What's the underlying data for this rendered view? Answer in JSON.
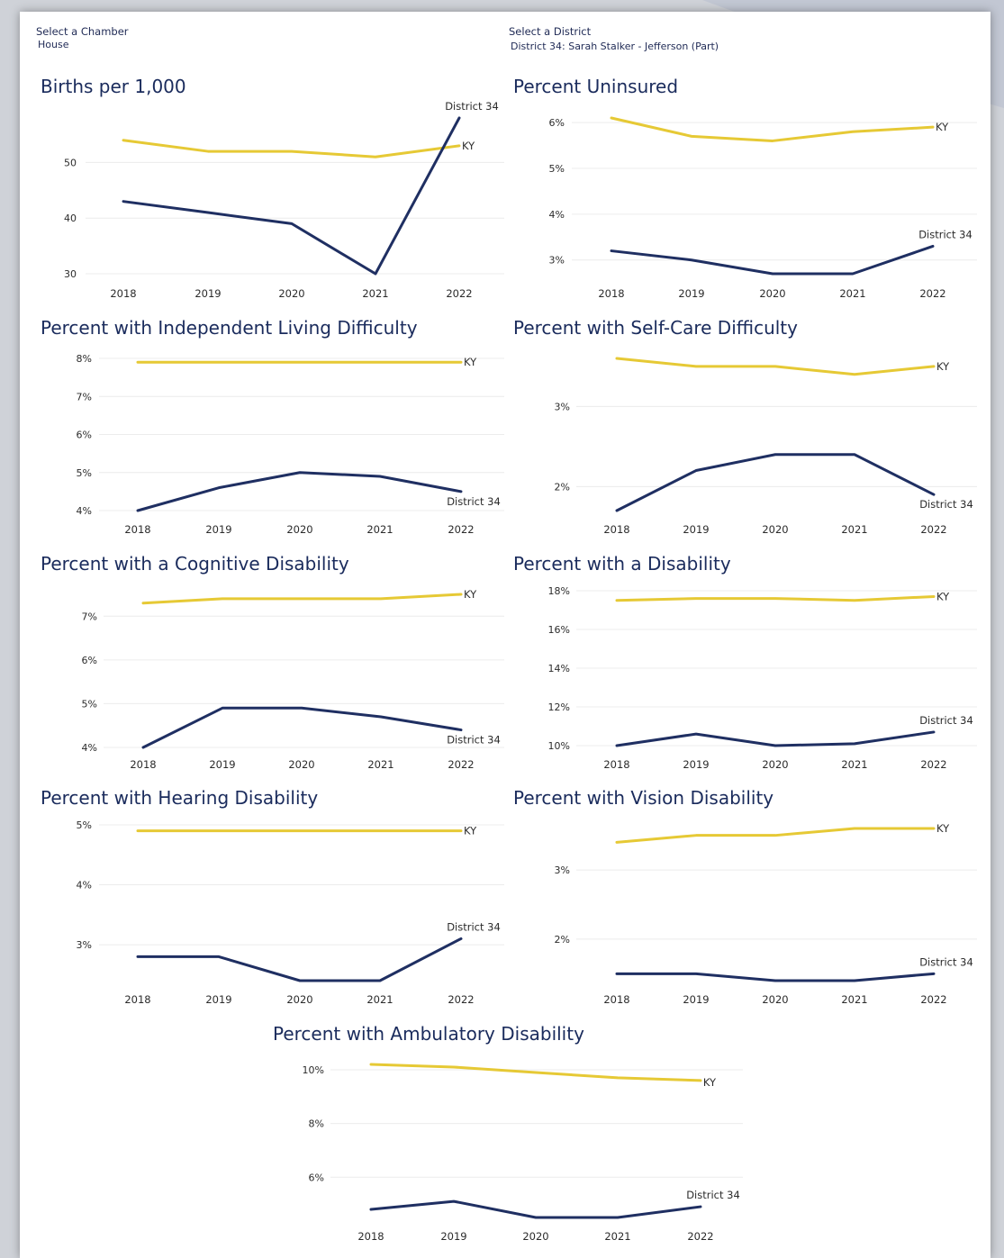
{
  "filters": {
    "chamber": {
      "label": "Select a Chamber",
      "value": "House"
    },
    "district": {
      "label": "Select a District",
      "value": "District 34: Sarah Stalker - Jefferson (Part)"
    }
  },
  "colors": {
    "ky": "#e6c935",
    "district": "#1f2f62",
    "grid": "#ececec",
    "title": "#1a2b5c"
  },
  "chart_data": [
    {
      "type": "line",
      "title": "Births per 1,000",
      "x": [
        "2018",
        "2019",
        "2020",
        "2021",
        "2022"
      ],
      "series": [
        {
          "name": "KY",
          "values": [
            54,
            52,
            52,
            51,
            53
          ]
        },
        {
          "name": "District 34",
          "values": [
            43,
            41,
            39,
            30,
            58
          ]
        }
      ],
      "yticks": [
        30,
        40,
        50
      ],
      "ytick_labels": [
        "30",
        "40",
        "50"
      ],
      "ylim": [
        30,
        58
      ],
      "grid": true
    },
    {
      "type": "line",
      "title": "Percent Uninsured",
      "x": [
        "2018",
        "2019",
        "2020",
        "2021",
        "2022"
      ],
      "series": [
        {
          "name": "KY",
          "values": [
            6.1,
            5.7,
            5.6,
            5.8,
            5.9
          ]
        },
        {
          "name": "District 34",
          "values": [
            3.2,
            3.0,
            2.7,
            2.7,
            3.3
          ]
        }
      ],
      "yticks": [
        3,
        4,
        5,
        6
      ],
      "ytick_labels": [
        "3%",
        "4%",
        "5%",
        "6%"
      ],
      "ylim": [
        2.7,
        6.1
      ],
      "grid": true
    },
    {
      "type": "line",
      "title": "Percent with Independent Living Difficulty",
      "x": [
        "2018",
        "2019",
        "2020",
        "2021",
        "2022"
      ],
      "series": [
        {
          "name": "KY",
          "values": [
            7.9,
            7.9,
            7.9,
            7.9,
            7.9
          ]
        },
        {
          "name": "District 34",
          "values": [
            4.0,
            4.6,
            5.0,
            4.9,
            4.5
          ]
        }
      ],
      "yticks": [
        4,
        5,
        6,
        7,
        8
      ],
      "ytick_labels": [
        "4%",
        "5%",
        "6%",
        "7%",
        "8%"
      ],
      "ylim": [
        4,
        8
      ],
      "grid": true
    },
    {
      "type": "line",
      "title": "Percent with Self-Care Difficulty",
      "x": [
        "2018",
        "2019",
        "2020",
        "2021",
        "2022"
      ],
      "series": [
        {
          "name": "KY",
          "values": [
            3.6,
            3.5,
            3.5,
            3.4,
            3.5
          ]
        },
        {
          "name": "District 34",
          "values": [
            1.7,
            2.2,
            2.4,
            2.4,
            1.9
          ]
        }
      ],
      "yticks": [
        2,
        3
      ],
      "ytick_labels": [
        "2%",
        "3%"
      ],
      "ylim": [
        1.7,
        3.6
      ],
      "grid": true
    },
    {
      "type": "line",
      "title": "Percent with a Cognitive Disability",
      "x": [
        "2018",
        "2019",
        "2020",
        "2021",
        "2022"
      ],
      "series": [
        {
          "name": "KY",
          "values": [
            7.3,
            7.4,
            7.4,
            7.4,
            7.5
          ]
        },
        {
          "name": "District 34",
          "values": [
            4.0,
            4.9,
            4.9,
            4.7,
            4.4
          ]
        }
      ],
      "yticks": [
        4,
        5,
        6,
        7
      ],
      "ytick_labels": [
        "4%",
        "5%",
        "6%",
        "7%"
      ],
      "ylim": [
        4,
        7.5
      ],
      "grid": true
    },
    {
      "type": "line",
      "title": "Percent with a Disability",
      "x": [
        "2018",
        "2019",
        "2020",
        "2021",
        "2022"
      ],
      "series": [
        {
          "name": "KY",
          "values": [
            17.5,
            17.6,
            17.6,
            17.5,
            17.7
          ]
        },
        {
          "name": "District 34",
          "values": [
            10.0,
            10.6,
            10.0,
            10.1,
            10.7
          ]
        }
      ],
      "yticks": [
        10,
        12,
        14,
        16,
        18
      ],
      "ytick_labels": [
        "10%",
        "12%",
        "14%",
        "16%",
        "18%"
      ],
      "ylim": [
        10,
        18
      ],
      "grid": true
    },
    {
      "type": "line",
      "title": "Percent with Hearing Disability",
      "x": [
        "2018",
        "2019",
        "2020",
        "2021",
        "2022"
      ],
      "series": [
        {
          "name": "KY",
          "values": [
            4.9,
            4.9,
            4.9,
            4.9,
            4.9
          ]
        },
        {
          "name": "District 34",
          "values": [
            2.8,
            2.8,
            2.4,
            2.4,
            3.1
          ]
        }
      ],
      "yticks": [
        3,
        4,
        5
      ],
      "ytick_labels": [
        "3%",
        "4%",
        "5%"
      ],
      "ylim": [
        2.4,
        5
      ],
      "grid": true
    },
    {
      "type": "line",
      "title": "Percent with Vision Disability",
      "x": [
        "2018",
        "2019",
        "2020",
        "2021",
        "2022"
      ],
      "series": [
        {
          "name": "KY",
          "values": [
            3.4,
            3.5,
            3.5,
            3.6,
            3.6
          ]
        },
        {
          "name": "District 34",
          "values": [
            1.5,
            1.5,
            1.4,
            1.4,
            1.5
          ]
        }
      ],
      "yticks": [
        2,
        3
      ],
      "ytick_labels": [
        "2%",
        "3%"
      ],
      "ylim": [
        1.4,
        3.6
      ],
      "grid": true
    },
    {
      "type": "line",
      "title": "Percent with Ambulatory Disability",
      "x": [
        "2018",
        "2019",
        "2020",
        "2021",
        "2022"
      ],
      "series": [
        {
          "name": "KY",
          "values": [
            10.2,
            10.1,
            9.9,
            9.7,
            9.6
          ]
        },
        {
          "name": "District 34",
          "values": [
            4.8,
            5.1,
            4.5,
            4.5,
            4.9
          ]
        }
      ],
      "yticks": [
        6,
        8,
        10
      ],
      "ytick_labels": [
        "6%",
        "8%",
        "10%"
      ],
      "ylim": [
        4.5,
        10.2
      ],
      "grid": true
    }
  ]
}
